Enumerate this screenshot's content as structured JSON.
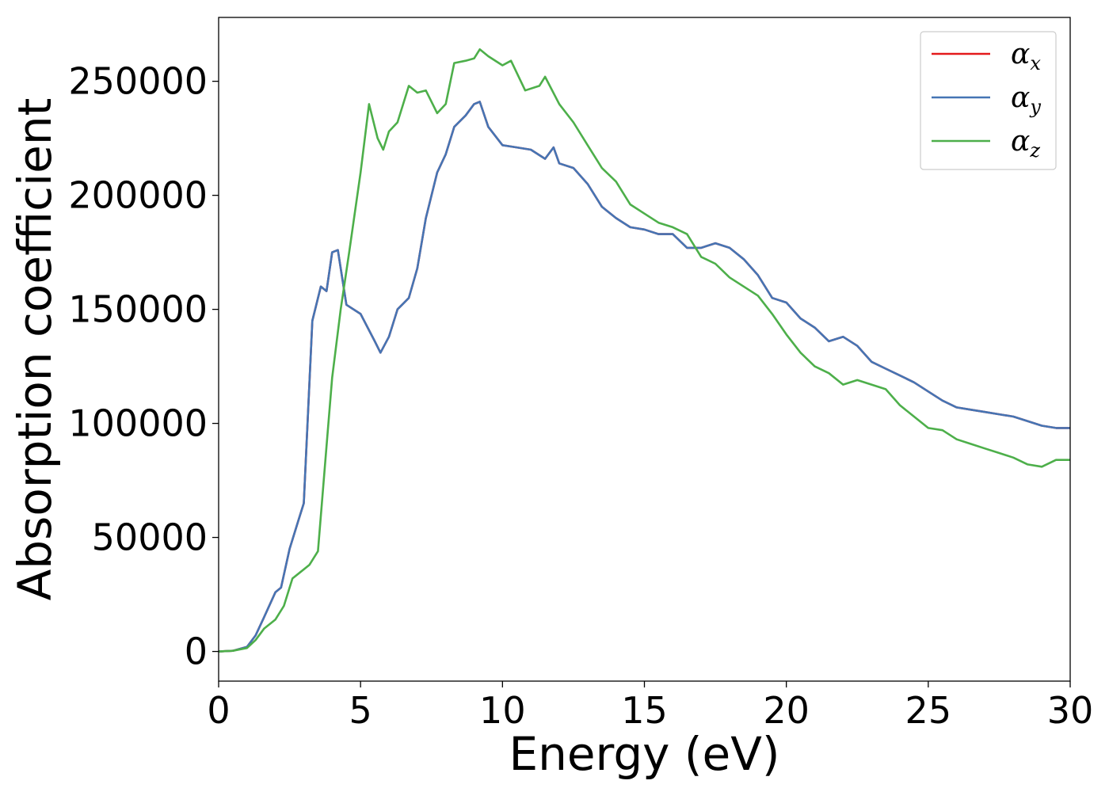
{
  "chart_data": {
    "type": "line",
    "title": "",
    "xlabel": "Energy (eV)",
    "ylabel": "Absorption coefficient",
    "xlim": [
      0,
      30
    ],
    "ylim": [
      -13000,
      278000
    ],
    "xticks": [
      0,
      5,
      10,
      15,
      20,
      25,
      30
    ],
    "yticks": [
      0,
      50000,
      100000,
      150000,
      200000,
      250000
    ],
    "xtick_labels": [
      "0",
      "5",
      "10",
      "15",
      "20",
      "25",
      "30"
    ],
    "ytick_labels": [
      "0",
      "50000",
      "100000",
      "150000",
      "200000",
      "250000"
    ],
    "grid": false,
    "legend_position": "top-right",
    "series": [
      {
        "name": "α",
        "subscript": "x",
        "color": "#e41a1c",
        "x": [
          0,
          0.5,
          1,
          1.3,
          1.6,
          2,
          2.2,
          2.5,
          2.8,
          3,
          3.3,
          3.6,
          3.8,
          4,
          4.2,
          4.5,
          5,
          5.5,
          5.7,
          6,
          6.3,
          6.7,
          7,
          7.3,
          7.7,
          8,
          8.3,
          8.7,
          9,
          9.2,
          9.5,
          10,
          10.5,
          11,
          11.5,
          11.8,
          12,
          12.5,
          13,
          13.5,
          14,
          14.5,
          15,
          15.5,
          16,
          16.5,
          17,
          17.5,
          18,
          18.5,
          19,
          19.5,
          20,
          20.5,
          21,
          21.5,
          22,
          22.5,
          23,
          23.5,
          24,
          24.5,
          25,
          25.5,
          26,
          26.5,
          27,
          27.5,
          28,
          28.5,
          29,
          29.5,
          30
        ],
        "values": [
          0,
          300,
          2000,
          7000,
          15000,
          26000,
          28000,
          45000,
          57000,
          65000,
          145000,
          160000,
          158000,
          175000,
          176000,
          152000,
          148000,
          136000,
          131000,
          138000,
          150000,
          155000,
          168000,
          190000,
          210000,
          218000,
          230000,
          235000,
          240000,
          241000,
          230000,
          222000,
          221000,
          220000,
          216000,
          221000,
          214000,
          212000,
          205000,
          195000,
          190000,
          186000,
          185000,
          183000,
          183000,
          177000,
          177000,
          179000,
          177000,
          172000,
          165000,
          155000,
          153000,
          146000,
          142000,
          136000,
          138000,
          134000,
          127000,
          124000,
          121000,
          118000,
          114000,
          110000,
          107000,
          106000,
          105000,
          104000,
          103000,
          101000,
          99000,
          98000,
          98000
        ]
      },
      {
        "name": "α",
        "subscript": "y",
        "color": "#4575b4",
        "x": [
          0,
          0.5,
          1,
          1.3,
          1.6,
          2,
          2.2,
          2.5,
          2.8,
          3,
          3.3,
          3.6,
          3.8,
          4,
          4.2,
          4.5,
          5,
          5.5,
          5.7,
          6,
          6.3,
          6.7,
          7,
          7.3,
          7.7,
          8,
          8.3,
          8.7,
          9,
          9.2,
          9.5,
          10,
          10.5,
          11,
          11.5,
          11.8,
          12,
          12.5,
          13,
          13.5,
          14,
          14.5,
          15,
          15.5,
          16,
          16.5,
          17,
          17.5,
          18,
          18.5,
          19,
          19.5,
          20,
          20.5,
          21,
          21.5,
          22,
          22.5,
          23,
          23.5,
          24,
          24.5,
          25,
          25.5,
          26,
          26.5,
          27,
          27.5,
          28,
          28.5,
          29,
          29.5,
          30
        ],
        "values": [
          0,
          300,
          2000,
          7000,
          15000,
          26000,
          28000,
          45000,
          57000,
          65000,
          145000,
          160000,
          158000,
          175000,
          176000,
          152000,
          148000,
          136000,
          131000,
          138000,
          150000,
          155000,
          168000,
          190000,
          210000,
          218000,
          230000,
          235000,
          240000,
          241000,
          230000,
          222000,
          221000,
          220000,
          216000,
          221000,
          214000,
          212000,
          205000,
          195000,
          190000,
          186000,
          185000,
          183000,
          183000,
          177000,
          177000,
          179000,
          177000,
          172000,
          165000,
          155000,
          153000,
          146000,
          142000,
          136000,
          138000,
          134000,
          127000,
          124000,
          121000,
          118000,
          114000,
          110000,
          107000,
          106000,
          105000,
          104000,
          103000,
          101000,
          99000,
          98000,
          98000
        ]
      },
      {
        "name": "α",
        "subscript": "z",
        "color": "#4daf4a",
        "x": [
          0,
          0.5,
          1,
          1.3,
          1.6,
          2,
          2.3,
          2.6,
          2.9,
          3.2,
          3.5,
          3.8,
          4,
          4.3,
          4.6,
          5,
          5.3,
          5.6,
          5.8,
          6,
          6.3,
          6.7,
          7,
          7.3,
          7.7,
          8,
          8.3,
          8.7,
          9,
          9.2,
          9.5,
          10,
          10.3,
          10.8,
          11.3,
          11.5,
          12,
          12.5,
          13,
          13.5,
          14,
          14.5,
          15,
          15.5,
          16,
          16.5,
          17,
          17.5,
          18,
          18.5,
          19,
          19.5,
          20,
          20.5,
          21,
          21.5,
          22,
          22.5,
          23,
          23.5,
          24,
          24.5,
          25,
          25.5,
          26,
          26.5,
          27,
          27.5,
          28,
          28.5,
          29,
          29.5,
          30
        ],
        "values": [
          0,
          300,
          1500,
          5000,
          10000,
          14000,
          20000,
          32000,
          35000,
          38000,
          44000,
          90000,
          120000,
          150000,
          175000,
          210000,
          240000,
          225000,
          220000,
          228000,
          232000,
          248000,
          245000,
          246000,
          236000,
          240000,
          258000,
          259000,
          260000,
          264000,
          261000,
          257000,
          259000,
          246000,
          248000,
          252000,
          240000,
          232000,
          222000,
          212000,
          206000,
          196000,
          192000,
          188000,
          186000,
          183000,
          173000,
          170000,
          164000,
          160000,
          156000,
          148000,
          139000,
          131000,
          125000,
          122000,
          117000,
          119000,
          117000,
          115000,
          108000,
          103000,
          98000,
          97000,
          93000,
          91000,
          89000,
          87000,
          85000,
          82000,
          81000,
          84000,
          84000
        ]
      }
    ]
  }
}
